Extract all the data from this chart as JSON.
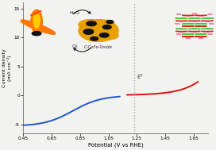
{
  "xlabel": "Potential (V vs RHE)",
  "ylabel": "Current density\n(mA cm⁻²)",
  "xlim": [
    0.45,
    1.75
  ],
  "ylim": [
    -6.5,
    16
  ],
  "xticks": [
    0.45,
    0.65,
    0.85,
    1.05,
    1.25,
    1.45,
    1.65
  ],
  "yticks": [
    -5,
    0,
    5,
    10,
    15
  ],
  "e0_x": 1.23,
  "blue_color": "#2255cc",
  "red_color": "#dd1111",
  "bg_color": "#f2f2ee",
  "dashed_color": "#aaaaaa",
  "flame_orange": "#FF7700",
  "flame_yellow": "#FFCC00",
  "flame_dark": "#CC4400",
  "blob_gold": "#E8A000",
  "blob_dark": "#111111",
  "crystal_green": "#44cc44",
  "crystal_red": "#dd2222",
  "crystal_pink": "#ee88aa"
}
